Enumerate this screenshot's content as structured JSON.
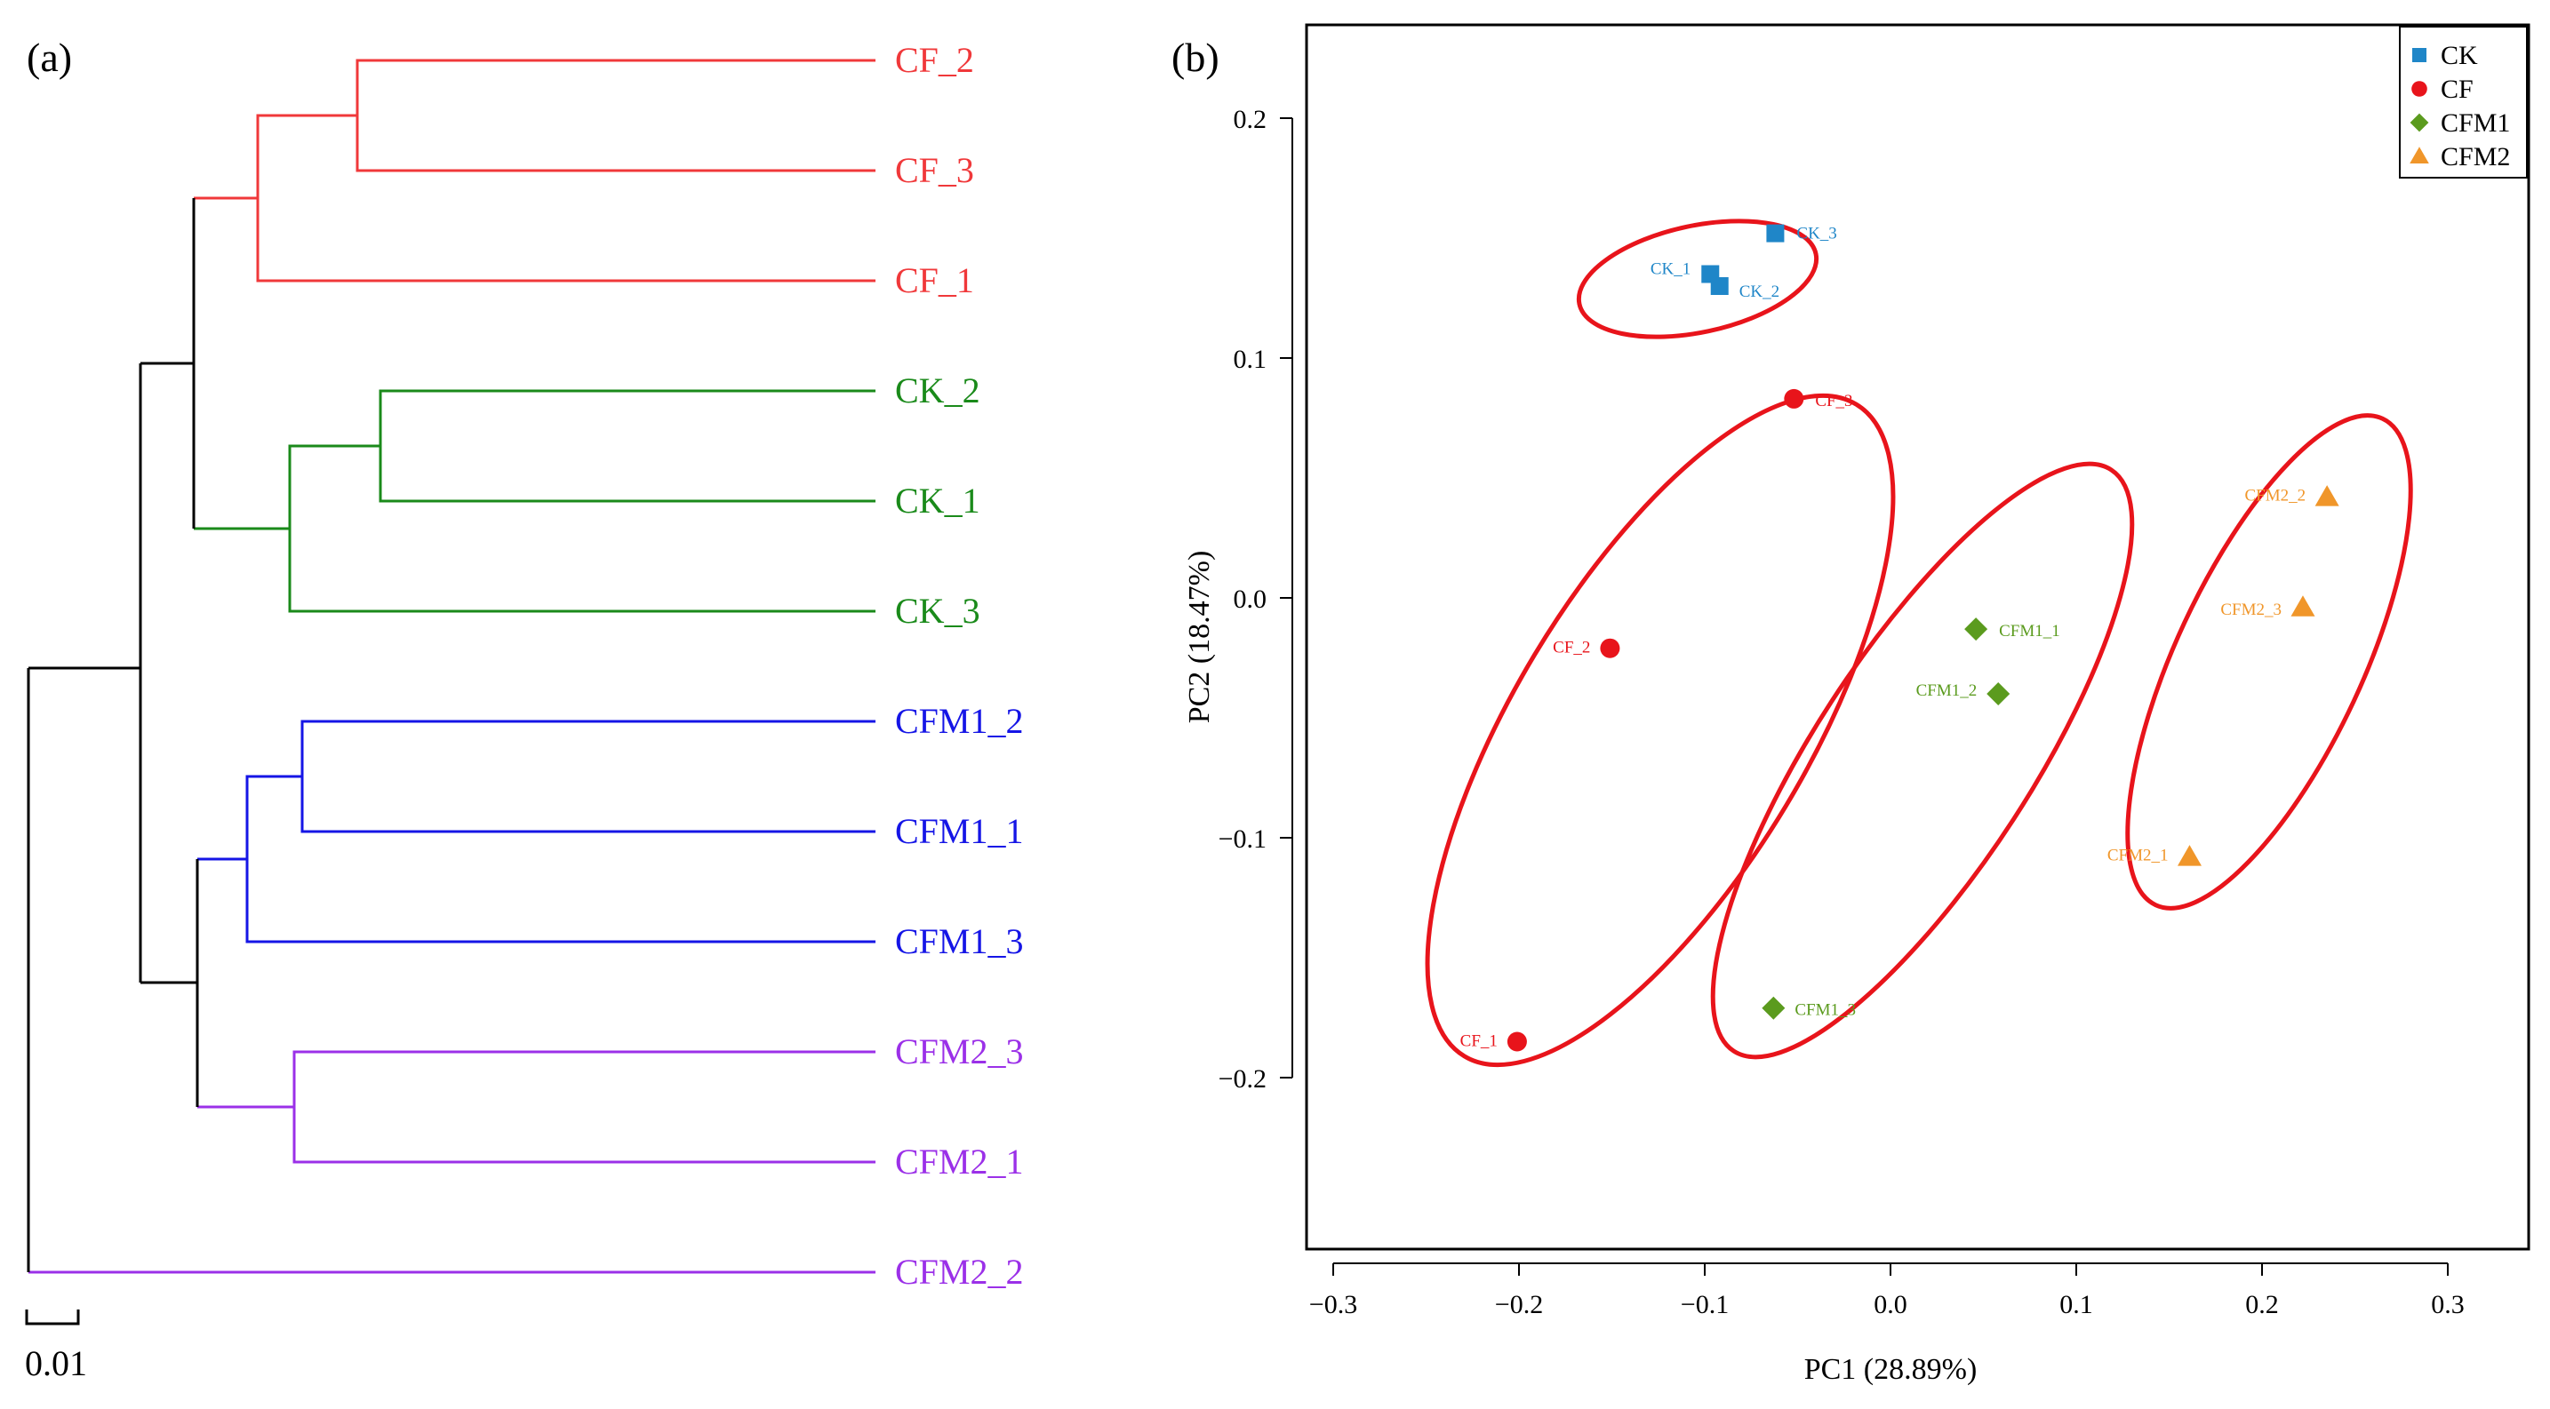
{
  "chart_data": [
    {
      "type": "dendrogram",
      "panel_label": "(a)",
      "scale_bar_label": "0.01",
      "leaves": [
        {
          "name": "CF_2",
          "group": "CF"
        },
        {
          "name": "CF_3",
          "group": "CF"
        },
        {
          "name": "CF_1",
          "group": "CF"
        },
        {
          "name": "CK_2",
          "group": "CK"
        },
        {
          "name": "CK_1",
          "group": "CK"
        },
        {
          "name": "CK_3",
          "group": "CK"
        },
        {
          "name": "CFM1_2",
          "group": "CFM1"
        },
        {
          "name": "CFM1_1",
          "group": "CFM1"
        },
        {
          "name": "CFM1_3",
          "group": "CFM1"
        },
        {
          "name": "CFM2_3",
          "group": "CFM2"
        },
        {
          "name": "CFM2_1",
          "group": "CFM2"
        },
        {
          "name": "CFM2_2",
          "group": "CFM2"
        }
      ]
    },
    {
      "type": "scatter",
      "panel_label": "(b)",
      "xlabel": "PC1 (28.89%)",
      "ylabel": "PC2 (18.47%)",
      "xlim": [
        -0.32,
        0.32
      ],
      "ylim": [
        -0.27,
        0.22
      ],
      "xticks": [
        -0.3,
        -0.2,
        -0.1,
        0.0,
        0.1,
        0.2,
        0.3
      ],
      "xtick_labels": [
        "−0.3",
        "−0.2",
        "−0.1",
        "0.0",
        "0.1",
        "0.2",
        "0.3"
      ],
      "yticks": [
        -0.2,
        -0.1,
        0.0,
        0.1,
        0.2
      ],
      "ytick_labels": [
        "−0.2",
        "−0.1",
        "0.0",
        "0.1",
        "0.2"
      ],
      "legend": [
        {
          "name": "CK",
          "marker": "square",
          "color": "#1f86c8"
        },
        {
          "name": "CF",
          "marker": "circle",
          "color": "#e8141b"
        },
        {
          "name": "CFM1",
          "marker": "diamond",
          "color": "#5b9b1e"
        },
        {
          "name": "CFM2",
          "marker": "triangle",
          "color": "#f0962a"
        }
      ],
      "series": [
        {
          "name": "CK",
          "points": [
            {
              "label": "CK_3",
              "x": -0.062,
              "y": 0.152
            },
            {
              "label": "CK_1",
              "x": -0.097,
              "y": 0.135
            },
            {
              "label": "CK_2",
              "x": -0.092,
              "y": 0.13
            }
          ]
        },
        {
          "name": "CF",
          "points": [
            {
              "label": "CF_3",
              "x": -0.052,
              "y": 0.083
            },
            {
              "label": "CF_2",
              "x": -0.151,
              "y": -0.021
            },
            {
              "label": "CF_1",
              "x": -0.201,
              "y": -0.185
            }
          ]
        },
        {
          "name": "CFM1",
          "points": [
            {
              "label": "CFM1_1",
              "x": 0.046,
              "y": -0.013
            },
            {
              "label": "CFM1_2",
              "x": 0.058,
              "y": -0.04
            },
            {
              "label": "CFM1_3",
              "x": -0.063,
              "y": -0.171
            }
          ]
        },
        {
          "name": "CFM2",
          "points": [
            {
              "label": "CFM2_2",
              "x": 0.235,
              "y": 0.042
            },
            {
              "label": "CFM2_3",
              "x": 0.222,
              "y": -0.004
            },
            {
              "label": "CFM2_1",
              "x": 0.161,
              "y": -0.108
            }
          ]
        }
      ]
    }
  ]
}
